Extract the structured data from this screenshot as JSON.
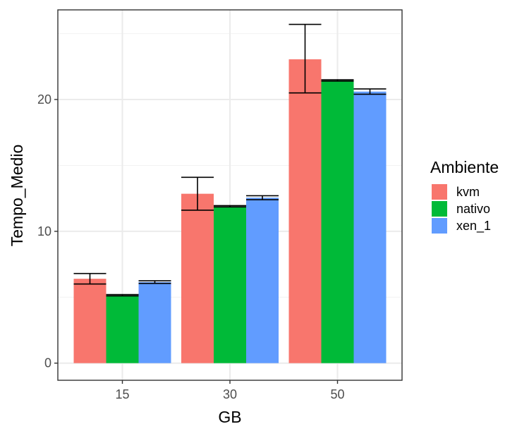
{
  "chart_data": {
    "type": "bar",
    "categories": [
      "15",
      "30",
      "50"
    ],
    "xlabel": "GB",
    "ylabel": "Tempo_Medio",
    "ylim": [
      -1.3,
      26.8
    ],
    "yticks": [
      0,
      10,
      20
    ],
    "grid": true,
    "legend": {
      "title": "Ambiente",
      "placement": "right"
    },
    "series": [
      {
        "name": "kvm",
        "color": "#F8766D",
        "values": [
          6.4,
          12.85,
          23.05
        ],
        "error_low": [
          6.0,
          11.6,
          20.5
        ],
        "error_high": [
          6.8,
          14.1,
          25.7
        ]
      },
      {
        "name": "nativo",
        "color": "#00BA38",
        "values": [
          5.15,
          11.9,
          21.45
        ],
        "error_low": [
          5.1,
          11.85,
          21.4
        ],
        "error_high": [
          5.2,
          11.95,
          21.5
        ]
      },
      {
        "name": "xen_1",
        "color": "#619CFF",
        "values": [
          6.15,
          12.55,
          20.6
        ],
        "error_low": [
          6.05,
          12.4,
          20.4
        ],
        "error_high": [
          6.25,
          12.7,
          20.8
        ]
      }
    ]
  }
}
